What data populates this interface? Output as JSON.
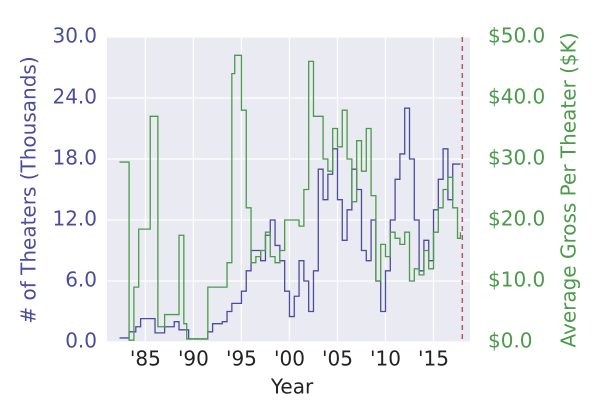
{
  "chart_data": {
    "type": "step",
    "x_label": "Year",
    "y_label": "# of Theaters (Thousands)",
    "y2_label": "Average Gross Per Theater ($K)",
    "xlim": [
      1981,
      2018.8
    ],
    "xticks": [
      {
        "value": 1985,
        "label": "'85"
      },
      {
        "value": 1990,
        "label": "'90"
      },
      {
        "value": 1995,
        "label": "'95"
      },
      {
        "value": 2000,
        "label": "'00"
      },
      {
        "value": 2005,
        "label": "'05"
      },
      {
        "value": 2010,
        "label": "'10"
      },
      {
        "value": 2015,
        "label": "'15"
      }
    ],
    "ylim": [
      0,
      30
    ],
    "yticks": [
      {
        "value": 0,
        "label": "0.0"
      },
      {
        "value": 6,
        "label": "6.0"
      },
      {
        "value": 12,
        "label": "12.0"
      },
      {
        "value": 18,
        "label": "18.0"
      },
      {
        "value": 24,
        "label": "24.0"
      },
      {
        "value": 30,
        "label": "30.0"
      }
    ],
    "y2lim": [
      0,
      50
    ],
    "y2ticks": [
      {
        "value": 0,
        "label": "$0.0"
      },
      {
        "value": 10,
        "label": "$10.0"
      },
      {
        "value": 20,
        "label": "$20.0"
      },
      {
        "value": 30,
        "label": "$30.0"
      },
      {
        "value": 40,
        "label": "$40.0"
      },
      {
        "value": 50,
        "label": "$50.0"
      }
    ],
    "grid": true,
    "vline": {
      "x": 2018,
      "color": "#b05a6a"
    },
    "series": [
      {
        "color": "#4c4c9c",
        "x": [
          1982.3,
          1983.3,
          1984,
          1984.5,
          1986,
          1987,
          1988,
          1988.5,
          1989.5,
          1991.5,
          1992,
          1993,
          1993.5,
          1994,
          1995,
          1995.5,
          1996,
          1997,
          1997.5,
          1998,
          1998.5,
          1999,
          1999.5,
          2000,
          2000.5,
          2001,
          2001.5,
          2002,
          2002.5,
          2003,
          2003.5,
          2004,
          2004.5,
          2005,
          2005.5,
          2006,
          2006.5,
          2007,
          2007.5,
          2008,
          2008.5,
          2009,
          2009.5,
          2010,
          2010.5,
          2011,
          2011.5,
          2012,
          2012.5,
          2013,
          2013.5,
          2014,
          2014.5,
          2015,
          2015.5,
          2016,
          2016.5,
          2017,
          2017.8
        ],
        "values": [
          0.4,
          1.0,
          1.5,
          2.3,
          0.9,
          1.5,
          2.0,
          1.2,
          0.3,
          1.0,
          1.8,
          2.0,
          3.0,
          3.8,
          5.0,
          7.0,
          9.0,
          8.0,
          10.5,
          12.0,
          9.5,
          8.0,
          5.0,
          2.5,
          4.5,
          8.0,
          6.0,
          3.0,
          7.0,
          17.0,
          14.0,
          16.5,
          19.0,
          14.0,
          10.0,
          13.0,
          17.0,
          15.0,
          9.0,
          8.0,
          12.0,
          6.0,
          3.0,
          7.0,
          12.0,
          16.0,
          18.5,
          23.0,
          18.0,
          12.0,
          7.0,
          10.0,
          8.0,
          13.0,
          16.0,
          19.0,
          14.0,
          17.5,
          17.5
        ]
      },
      {
        "color": "#4c9a4c",
        "axis": "y2",
        "x": [
          1982.3,
          1983.3,
          1983.8,
          1984.3,
          1985.5,
          1986.3,
          1987,
          1988.5,
          1989,
          1989.3,
          1991.5,
          1993.5,
          1994,
          1994.3,
          1995,
          1995.5,
          1996,
          1996.5,
          1997,
          1997.5,
          1998,
          1998.5,
          1999,
          1999.5,
          2001,
          2001.5,
          2002,
          2002.5,
          2003.5,
          2004,
          2004.5,
          2005,
          2005.5,
          2006,
          2006.5,
          2007,
          2007.5,
          2008,
          2008.5,
          2009,
          2009.5,
          2010,
          2010.5,
          2011,
          2011.5,
          2012,
          2012.5,
          2013,
          2013.5,
          2014,
          2014.5,
          2015,
          2015.5,
          2016,
          2016.5,
          2017,
          2017.5,
          2017.8
        ],
        "values": [
          29.5,
          0.3,
          9.0,
          18.5,
          37.0,
          2.5,
          4.5,
          17.5,
          3.0,
          0.5,
          9.0,
          13.0,
          44.0,
          47.0,
          38.0,
          22.0,
          13.0,
          14.0,
          15.0,
          18.0,
          14.0,
          13.0,
          15.0,
          20.0,
          19.0,
          25.0,
          46.0,
          37.0,
          30.0,
          28.0,
          35.0,
          32.0,
          38.0,
          30.0,
          23.0,
          33.0,
          28.0,
          35.0,
          24.0,
          10.0,
          16.0,
          14.0,
          18.0,
          17.0,
          16.0,
          18.0,
          10.0,
          12.0,
          11.0,
          15.0,
          12.0,
          18.0,
          22.0,
          25.0,
          27.0,
          22.0,
          17.0,
          18.0
        ]
      }
    ]
  }
}
